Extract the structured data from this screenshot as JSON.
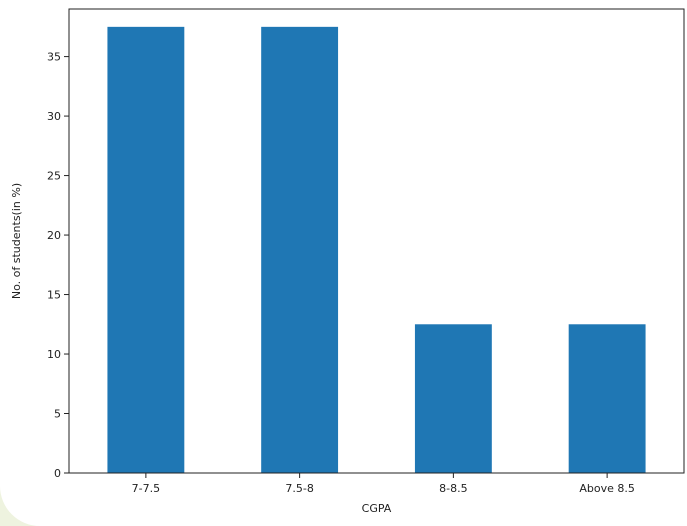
{
  "chart_data": {
    "type": "bar",
    "title": "",
    "xlabel": "CGPA",
    "ylabel": "No. of students(in %)",
    "categories": [
      "7-7.5",
      "7.5-8",
      "8-8.5",
      "Above 8.5"
    ],
    "values": [
      37.5,
      37.5,
      12.5,
      12.5
    ],
    "ylim": [
      0,
      39.0
    ],
    "yticks": [
      0,
      5,
      10,
      15,
      20,
      25,
      30,
      35
    ],
    "bar_color": "#1f77b4",
    "grid": false,
    "legend": "none"
  }
}
